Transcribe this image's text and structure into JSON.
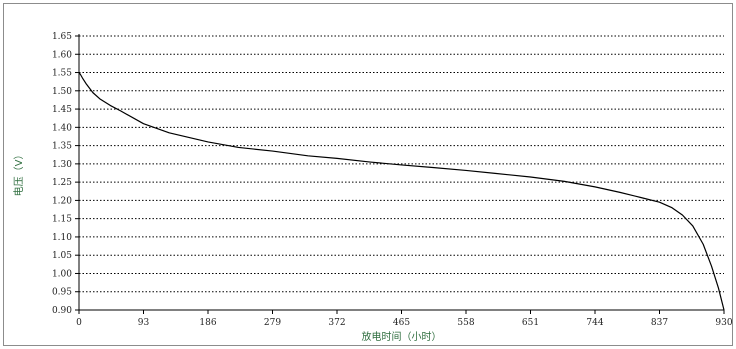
{
  "chart_data": {
    "type": "line",
    "title": "",
    "xlabel": "放电时间（小时）",
    "ylabel": "电压（V）",
    "xlim": [
      0,
      930
    ],
    "ylim": [
      0.9,
      1.65
    ],
    "x_ticks": [
      "0",
      "93",
      "186",
      "279",
      "372",
      "465",
      "558",
      "651",
      "744",
      "837",
      "930"
    ],
    "y_ticks": [
      "0.90",
      "0.95",
      "1.00",
      "1.05",
      "1.10",
      "1.15",
      "1.20",
      "1.25",
      "1.30",
      "1.35",
      "1.40",
      "1.45",
      "1.50",
      "1.55",
      "1.60",
      "1.65"
    ],
    "grid": "horizontal-dotted",
    "series": [
      {
        "color": "#000000",
        "x": [
          0,
          2,
          5,
          10,
          20,
          30,
          45,
          60,
          93,
          130,
          186,
          230,
          279,
          330,
          372,
          420,
          465,
          510,
          558,
          600,
          651,
          700,
          744,
          780,
          810,
          837,
          855,
          870,
          885,
          900,
          912,
          922,
          930
        ],
        "y": [
          1.55,
          1.545,
          1.535,
          1.52,
          1.495,
          1.478,
          1.46,
          1.445,
          1.41,
          1.385,
          1.36,
          1.345,
          1.335,
          1.322,
          1.315,
          1.305,
          1.297,
          1.29,
          1.282,
          1.274,
          1.264,
          1.252,
          1.237,
          1.222,
          1.208,
          1.195,
          1.18,
          1.16,
          1.13,
          1.08,
          1.02,
          0.96,
          0.9
        ]
      }
    ]
  }
}
